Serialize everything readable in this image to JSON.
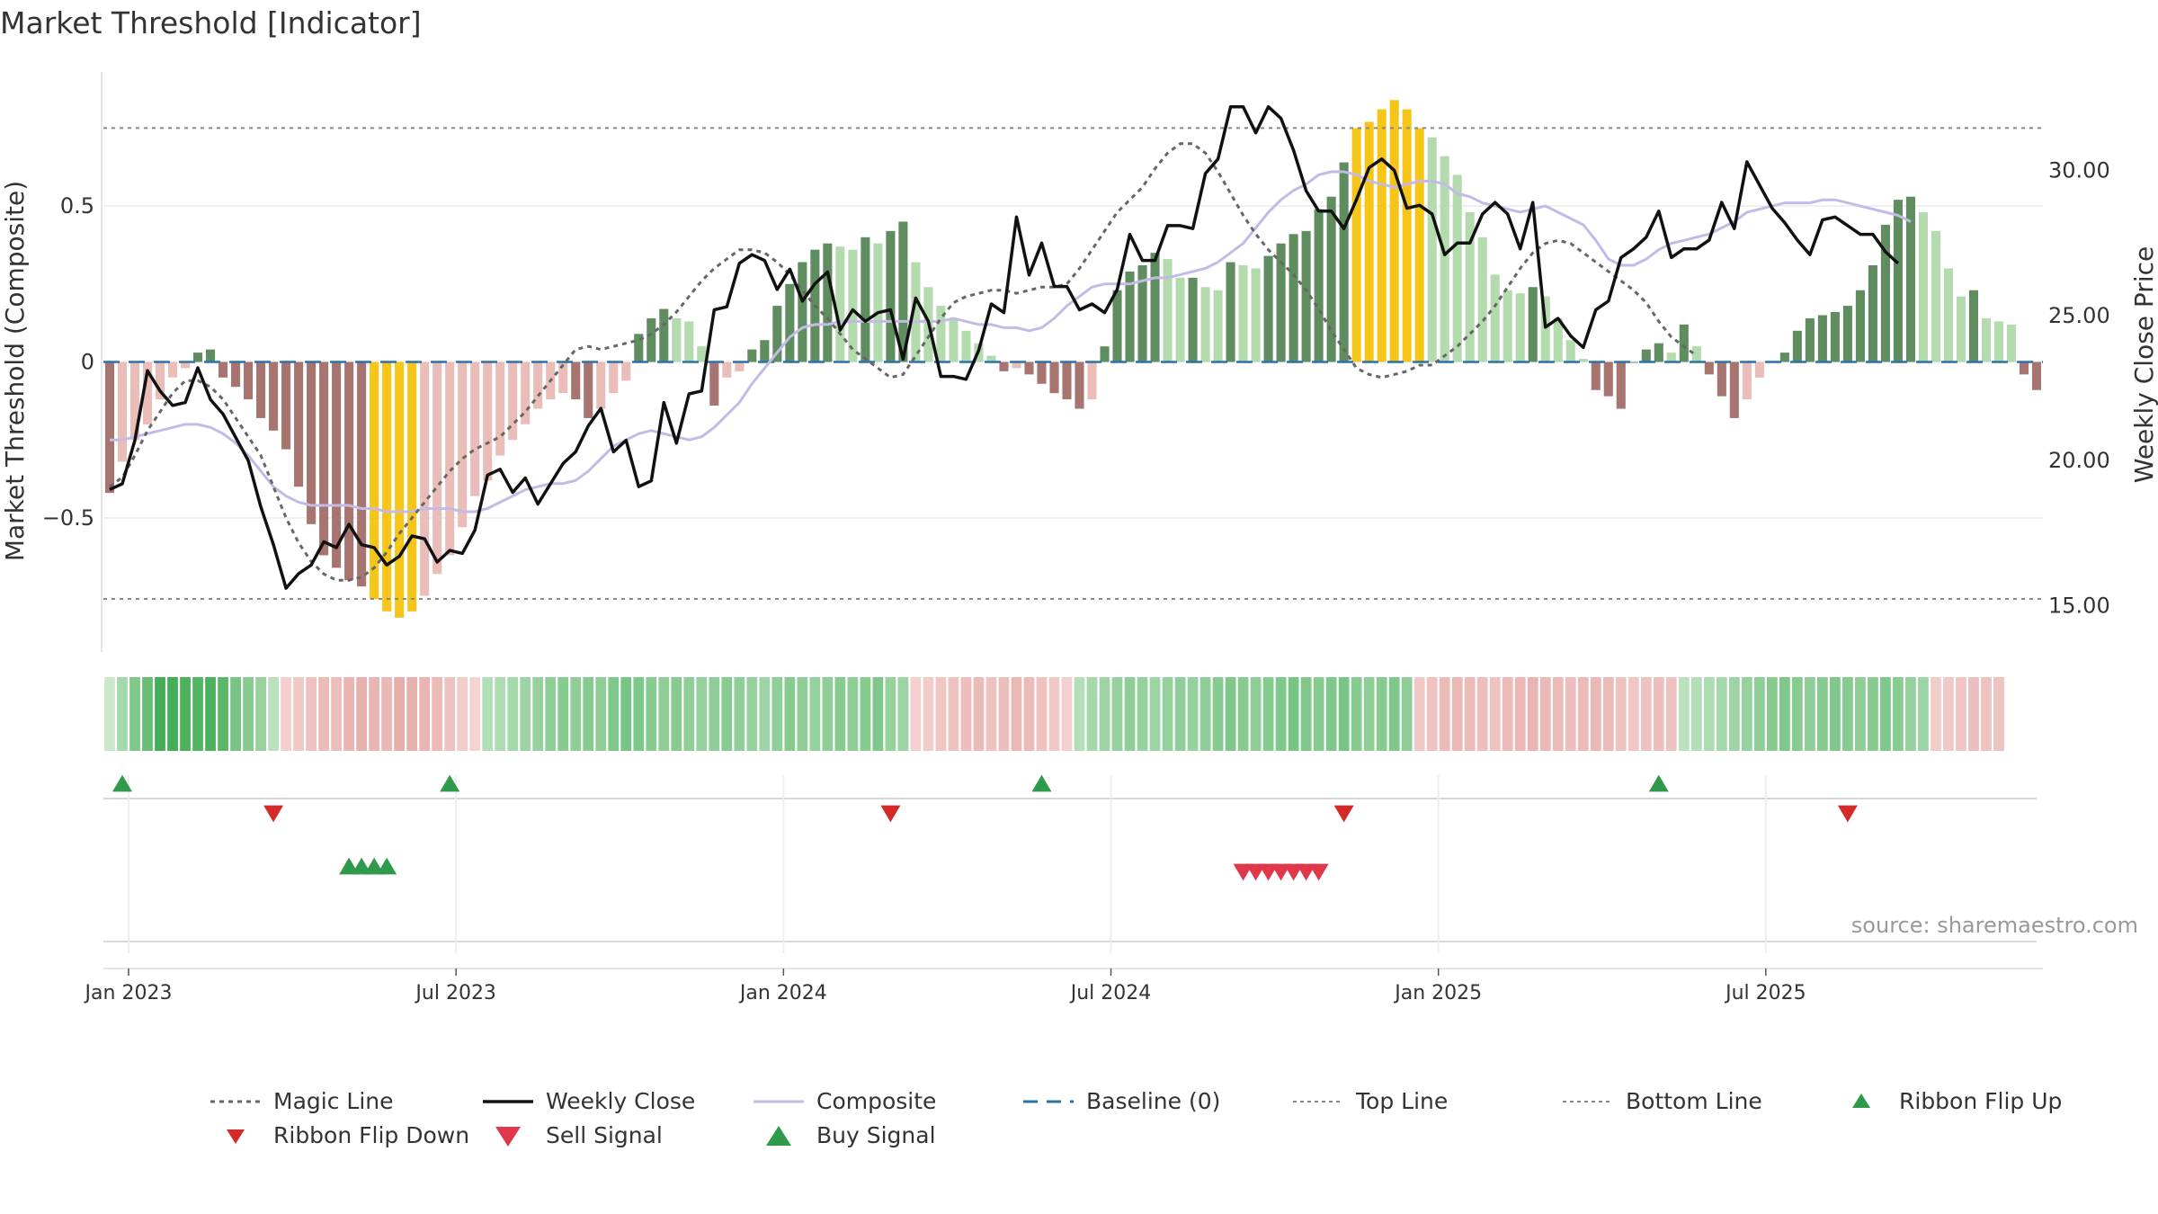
{
  "title": "Market Threshold [Indicator]",
  "source": "source: sharemaestro.com",
  "colors": {
    "bar_neg_light": "#ebbdb8",
    "bar_neg_dark": "#a8746f",
    "bar_pos_light": "#b4dbae",
    "bar_pos_dark": "#5f8d5f",
    "bar_extreme": "#f5c518",
    "close_line": "#111111",
    "composite_line": "#c3bbe6",
    "magic_line": "#666666",
    "baseline": "#2a72a8",
    "flip_up": "#2e9a4a",
    "flip_down": "#d42a2a",
    "buy": "#2e9a4a",
    "sell": "#e0384a"
  },
  "chart_data": {
    "type": "bar",
    "left_axis": {
      "label": "Market Threshold (Composite)",
      "ticks": [
        "0.5",
        "0",
        "−0.5"
      ],
      "tick_values": [
        0.5,
        0,
        -0.5
      ],
      "ylim": [
        -0.93,
        0.93
      ]
    },
    "right_axis": {
      "label": "Weekly Close Price",
      "ticks": [
        "30.00",
        "25.00",
        "20.00",
        "15.00"
      ],
      "tick_values": [
        30,
        25,
        20,
        15
      ],
      "ylim": [
        13.4,
        33.4
      ]
    },
    "x_ticks": [
      "Jan 2023",
      "Jul 2023",
      "Jan 2024",
      "Jul 2024",
      "Jan 2025",
      "Jul 2025"
    ],
    "x_tick_weeks": [
      2,
      28,
      54,
      80,
      106,
      132
    ],
    "top_line": 0.75,
    "bottom_line": -0.76,
    "composite_bars": [
      -0.42,
      -0.32,
      -0.25,
      -0.2,
      -0.12,
      -0.05,
      -0.02,
      0.03,
      0.04,
      -0.05,
      -0.08,
      -0.12,
      -0.18,
      -0.22,
      -0.28,
      -0.4,
      -0.52,
      -0.62,
      -0.66,
      -0.7,
      -0.72,
      -0.76,
      -0.8,
      -0.82,
      -0.8,
      -0.75,
      -0.68,
      -0.62,
      -0.53,
      -0.43,
      -0.38,
      -0.3,
      -0.25,
      -0.2,
      -0.15,
      -0.12,
      -0.1,
      -0.12,
      -0.18,
      -0.15,
      -0.1,
      -0.06,
      0.09,
      0.14,
      0.17,
      0.14,
      0.13,
      0.05,
      -0.14,
      -0.05,
      -0.03,
      0.04,
      0.07,
      0.18,
      0.25,
      0.32,
      0.36,
      0.38,
      0.37,
      0.36,
      0.4,
      0.38,
      0.42,
      0.45,
      0.32,
      0.24,
      0.18,
      0.14,
      0.1,
      0.06,
      0.02,
      -0.03,
      -0.02,
      -0.04,
      -0.07,
      -0.1,
      -0.12,
      -0.15,
      -0.12,
      0.05,
      0.23,
      0.29,
      0.31,
      0.35,
      0.33,
      0.27,
      0.27,
      0.24,
      0.23,
      0.32,
      0.31,
      0.3,
      0.34,
      0.38,
      0.41,
      0.42,
      0.49,
      0.53,
      0.64,
      0.75,
      0.77,
      0.81,
      0.84,
      0.81,
      0.75,
      0.72,
      0.66,
      0.6,
      0.48,
      0.4,
      0.28,
      0.23,
      0.22,
      0.24,
      0.21,
      0.14,
      0.07,
      0.01,
      -0.09,
      -0.11,
      -0.15,
      0.0,
      0.04,
      0.06,
      0.03,
      0.12,
      0.05,
      -0.04,
      -0.11,
      -0.18,
      -0.12,
      -0.05,
      0.0,
      0.03,
      0.1,
      0.14,
      0.15,
      0.16,
      0.18,
      0.23,
      0.31,
      0.44,
      0.52,
      0.53,
      0.48,
      0.42,
      0.3,
      0.21,
      0.23,
      0.14,
      0.13,
      0.12,
      -0.04,
      -0.09
    ],
    "weekly_close": [
      19.0,
      19.2,
      20.7,
      23.1,
      22.4,
      21.9,
      22.0,
      23.2,
      22.1,
      21.6,
      20.8,
      20.0,
      18.4,
      17.1,
      15.6,
      16.1,
      16.4,
      17.2,
      17.0,
      17.8,
      17.1,
      17.0,
      16.4,
      16.7,
      17.4,
      17.3,
      16.5,
      16.9,
      16.8,
      17.6,
      19.5,
      19.7,
      18.9,
      19.4,
      18.5,
      19.2,
      19.9,
      20.3,
      21.2,
      21.8,
      20.3,
      20.7,
      19.1,
      19.3,
      22.0,
      20.6,
      22.3,
      22.4,
      25.2,
      25.3,
      26.8,
      27.1,
      26.9,
      25.9,
      26.6,
      25.5,
      26.1,
      26.5,
      24.5,
      25.2,
      24.8,
      25.1,
      25.2,
      23.5,
      25.6,
      24.8,
      22.9,
      22.9,
      22.8,
      23.8,
      25.4,
      25.1,
      28.4,
      26.4,
      27.5,
      26.0,
      26.0,
      25.2,
      25.4,
      25.1,
      25.9,
      27.8,
      26.9,
      26.9,
      28.1,
      28.1,
      28.0,
      29.9,
      30.4,
      32.2,
      32.2,
      31.3,
      32.2,
      31.8,
      30.7,
      29.3,
      28.6,
      28.6,
      28.0,
      29.0,
      30.1,
      30.4,
      30.0,
      28.7,
      28.8,
      28.5,
      27.1,
      27.5,
      27.5,
      28.5,
      28.9,
      28.5,
      27.3,
      28.9,
      24.6,
      24.9,
      24.3,
      23.9,
      25.2,
      25.5,
      27.0,
      27.3,
      27.7,
      28.6,
      27.0,
      27.3,
      27.3,
      27.6,
      28.9,
      28.0,
      30.3,
      29.5,
      28.7,
      28.2,
      27.6,
      27.1,
      28.3,
      28.4,
      28.1,
      27.8,
      27.8,
      27.2,
      26.8
    ],
    "composite_line": [
      -0.25,
      -0.25,
      -0.24,
      -0.23,
      -0.22,
      -0.21,
      -0.2,
      -0.2,
      -0.21,
      -0.23,
      -0.26,
      -0.3,
      -0.35,
      -0.4,
      -0.43,
      -0.45,
      -0.46,
      -0.46,
      -0.46,
      -0.46,
      -0.47,
      -0.47,
      -0.48,
      -0.48,
      -0.48,
      -0.47,
      -0.47,
      -0.47,
      -0.48,
      -0.48,
      -0.47,
      -0.45,
      -0.43,
      -0.41,
      -0.4,
      -0.39,
      -0.39,
      -0.38,
      -0.35,
      -0.31,
      -0.27,
      -0.25,
      -0.23,
      -0.22,
      -0.23,
      -0.24,
      -0.25,
      -0.24,
      -0.21,
      -0.17,
      -0.13,
      -0.07,
      -0.02,
      0.03,
      0.08,
      0.11,
      0.12,
      0.12,
      0.13,
      0.13,
      0.13,
      0.13,
      0.13,
      0.13,
      0.13,
      0.13,
      0.13,
      0.14,
      0.13,
      0.12,
      0.12,
      0.11,
      0.11,
      0.1,
      0.11,
      0.14,
      0.18,
      0.21,
      0.24,
      0.25,
      0.25,
      0.25,
      0.26,
      0.27,
      0.27,
      0.28,
      0.29,
      0.3,
      0.32,
      0.35,
      0.38,
      0.43,
      0.48,
      0.52,
      0.55,
      0.57,
      0.6,
      0.61,
      0.61,
      0.6,
      0.58,
      0.57,
      0.56,
      0.57,
      0.58,
      0.58,
      0.57,
      0.54,
      0.53,
      0.51,
      0.5,
      0.49,
      0.48,
      0.49,
      0.5,
      0.48,
      0.46,
      0.44,
      0.39,
      0.33,
      0.31,
      0.31,
      0.33,
      0.36,
      0.38,
      0.39,
      0.4,
      0.41,
      0.43,
      0.45,
      0.48,
      0.49,
      0.5,
      0.51,
      0.51,
      0.51,
      0.52,
      0.52,
      0.51,
      0.5,
      0.49,
      0.48,
      0.47,
      0.45
    ],
    "magic_line": [
      -0.4,
      -0.37,
      -0.3,
      -0.22,
      -0.16,
      -0.1,
      -0.06,
      -0.06,
      -0.08,
      -0.12,
      -0.18,
      -0.24,
      -0.3,
      -0.4,
      -0.5,
      -0.58,
      -0.64,
      -0.68,
      -0.7,
      -0.7,
      -0.69,
      -0.66,
      -0.61,
      -0.55,
      -0.5,
      -0.45,
      -0.4,
      -0.35,
      -0.31,
      -0.28,
      -0.26,
      -0.24,
      -0.2,
      -0.16,
      -0.11,
      -0.06,
      -0.01,
      0.04,
      0.05,
      0.04,
      0.05,
      0.06,
      0.07,
      0.09,
      0.12,
      0.16,
      0.21,
      0.26,
      0.3,
      0.33,
      0.36,
      0.36,
      0.35,
      0.32,
      0.28,
      0.23,
      0.18,
      0.14,
      0.09,
      0.04,
      0.01,
      -0.02,
      -0.05,
      -0.04,
      0.02,
      0.08,
      0.14,
      0.19,
      0.21,
      0.22,
      0.23,
      0.23,
      0.22,
      0.23,
      0.24,
      0.24,
      0.25,
      0.3,
      0.36,
      0.42,
      0.48,
      0.52,
      0.56,
      0.62,
      0.67,
      0.7,
      0.7,
      0.67,
      0.61,
      0.54,
      0.47,
      0.41,
      0.36,
      0.32,
      0.28,
      0.23,
      0.17,
      0.1,
      0.04,
      -0.02,
      -0.04,
      -0.05,
      -0.04,
      -0.03,
      -0.01,
      -0.01,
      0.02,
      0.05,
      0.09,
      0.13,
      0.18,
      0.24,
      0.3,
      0.35,
      0.38,
      0.39,
      0.38,
      0.35,
      0.32,
      0.29,
      0.26,
      0.23,
      0.19,
      0.13,
      0.08,
      0.05,
      0.02
    ],
    "ribbon_flip_up_weeks": [
      1,
      27,
      74,
      123
    ],
    "ribbon_flip_down_weeks": [
      13,
      62,
      98,
      138
    ],
    "buy_signal_weeks": [
      19,
      20,
      21,
      22
    ],
    "sell_signal_weeks": [
      90,
      91,
      92,
      93,
      94,
      95,
      96
    ],
    "ribbon": [
      0.05,
      0.3,
      0.55,
      0.7,
      0.95,
      0.95,
      0.9,
      0.85,
      0.9,
      0.8,
      0.6,
      0.5,
      0.4,
      0.15,
      -0.1,
      -0.2,
      -0.3,
      -0.4,
      -0.35,
      -0.5,
      -0.55,
      -0.5,
      -0.45,
      -0.6,
      -0.55,
      -0.5,
      -0.4,
      -0.3,
      -0.15,
      -0.05,
      0.2,
      0.25,
      0.3,
      0.35,
      0.4,
      0.45,
      0.5,
      0.45,
      0.5,
      0.45,
      0.55,
      0.6,
      0.55,
      0.5,
      0.45,
      0.5,
      0.45,
      0.4,
      0.45,
      0.5,
      0.45,
      0.4,
      0.35,
      0.45,
      0.5,
      0.45,
      0.4,
      0.45,
      0.5,
      0.45,
      0.5,
      0.55,
      0.4,
      0.35,
      -0.1,
      -0.15,
      -0.25,
      -0.3,
      -0.35,
      -0.4,
      -0.3,
      -0.35,
      -0.45,
      -0.4,
      -0.3,
      -0.2,
      -0.1,
      0.2,
      0.3,
      0.35,
      0.4,
      0.45,
      0.4,
      0.35,
      0.4,
      0.45,
      0.4,
      0.45,
      0.5,
      0.55,
      0.5,
      0.45,
      0.5,
      0.55,
      0.6,
      0.55,
      0.5,
      0.55,
      0.6,
      0.5,
      0.45,
      0.5,
      0.55,
      0.45,
      -0.2,
      -0.3,
      -0.4,
      -0.45,
      -0.4,
      -0.35,
      -0.3,
      -0.4,
      -0.45,
      -0.5,
      -0.45,
      -0.4,
      -0.35,
      -0.4,
      -0.45,
      -0.4,
      -0.3,
      -0.25,
      -0.3,
      -0.35,
      -0.3,
      0.15,
      0.2,
      0.25,
      0.3,
      0.35,
      0.4,
      0.45,
      0.5,
      0.55,
      0.5,
      0.45,
      0.5,
      0.55,
      0.5,
      0.45,
      0.5,
      0.55,
      0.5,
      0.4,
      0.35,
      -0.15,
      -0.2,
      -0.25,
      -0.35,
      -0.3,
      -0.3
    ]
  },
  "legend": [
    {
      "label": "Magic Line",
      "symbol": "dotted",
      "color": "#666666"
    },
    {
      "label": "Weekly Close",
      "symbol": "solid",
      "color": "#111111"
    },
    {
      "label": "Composite",
      "symbol": "solid-light",
      "color": "#c3bbe6"
    },
    {
      "label": "Baseline (0)",
      "symbol": "dashed",
      "color": "#2a72a8"
    },
    {
      "label": "Top Line",
      "symbol": "dotted-thin",
      "color": "#888888"
    },
    {
      "label": "Bottom Line",
      "symbol": "dotted-thin",
      "color": "#888888"
    },
    {
      "label": "Ribbon Flip Up",
      "symbol": "triangle-up",
      "color": "#2e9a4a"
    },
    {
      "label": "Ribbon Flip Down",
      "symbol": "triangle-down",
      "color": "#d42a2a"
    },
    {
      "label": "Sell Signal",
      "symbol": "triangle-down-big",
      "color": "#e0384a"
    },
    {
      "label": "Buy Signal",
      "symbol": "triangle-up-big",
      "color": "#2e9a4a"
    }
  ]
}
